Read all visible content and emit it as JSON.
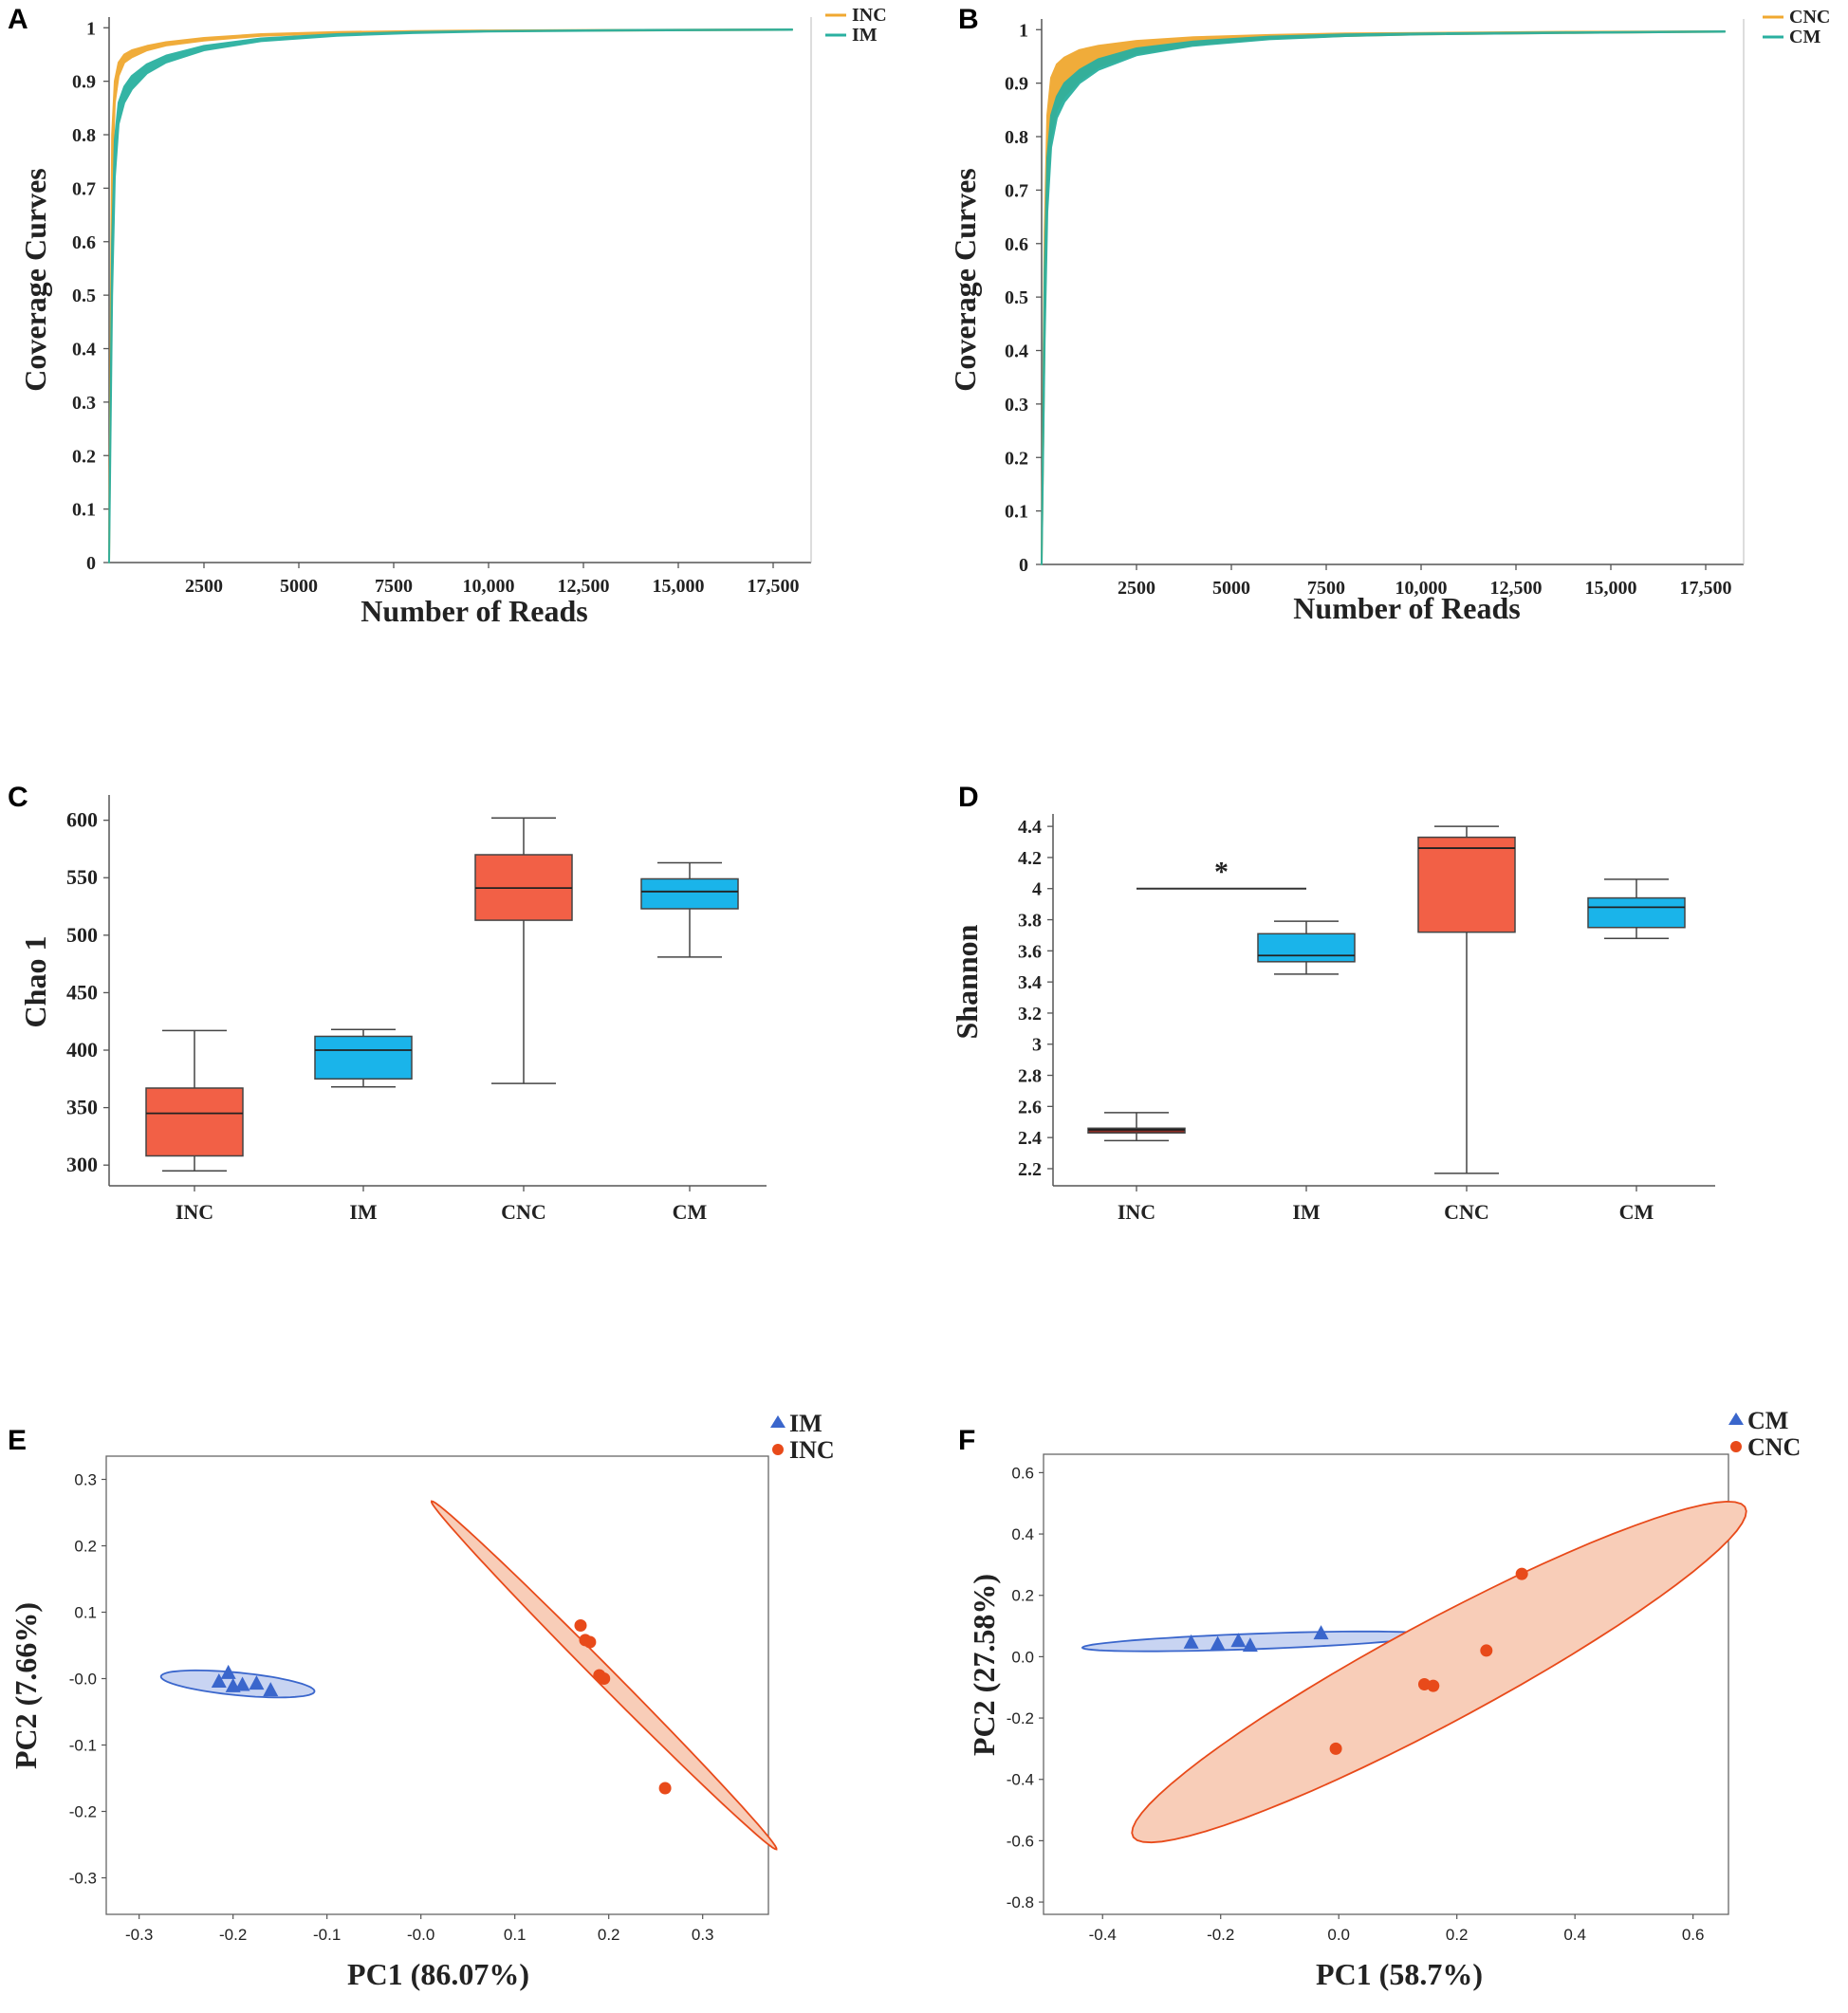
{
  "panel_labels": [
    "A",
    "B",
    "C",
    "D",
    "E",
    "F"
  ],
  "colors": {
    "orange_curve": "#f0a830",
    "teal_curve": "#2ab0a0",
    "box_red": "#f26046",
    "box_blue": "#1ab4ea",
    "box_dark_red": "#8a2a22",
    "pca_blue": "#3a66cc",
    "pca_blue_fill": "#c8d4f2",
    "pca_orange": "#e84a1a",
    "pca_orange_fill": "#f8cdb8"
  },
  "chart_data": [
    {
      "id": "A",
      "type": "line",
      "xlabel": "Number of Reads",
      "ylabel": "Coverage Curves",
      "xlim": [
        0,
        18500
      ],
      "ylim": [
        0,
        1.02
      ],
      "x_ticks": [
        2500,
        5000,
        7500,
        10000,
        12500,
        15000,
        17500
      ],
      "x_tick_labels": [
        "2500",
        "5000",
        "7500",
        "10,000",
        "12,500",
        "15,000",
        "17,500"
      ],
      "y_ticks": [
        0,
        0.1,
        0.2,
        0.3,
        0.4,
        0.5,
        0.6,
        0.7,
        0.8,
        0.9,
        1
      ],
      "y_tick_labels": [
        "0",
        "0.1",
        "0.2",
        "0.3",
        "0.4",
        "0.5",
        "0.6",
        "0.7",
        "0.8",
        "0.9",
        "1"
      ],
      "legend": [
        "INC",
        "IM"
      ],
      "series": [
        {
          "name": "INC",
          "color": "#f0a830",
          "x": [
            0,
            80,
            150,
            250,
            400,
            600,
            1000,
            1500,
            2500,
            4000,
            6000,
            8000,
            10000,
            14000,
            18000
          ],
          "y_low": [
            0,
            0.72,
            0.86,
            0.91,
            0.935,
            0.945,
            0.958,
            0.967,
            0.976,
            0.985,
            0.99,
            0.992,
            0.994,
            0.995,
            0.996
          ],
          "y_high": [
            0,
            0.8,
            0.9,
            0.935,
            0.95,
            0.958,
            0.966,
            0.973,
            0.981,
            0.988,
            0.992,
            0.994,
            0.995,
            0.996,
            0.997
          ]
        },
        {
          "name": "IM",
          "color": "#2ab0a0",
          "x": [
            0,
            80,
            150,
            250,
            400,
            600,
            1000,
            1500,
            2500,
            4000,
            6000,
            8000,
            10000,
            14000,
            18000
          ],
          "y_low": [
            0,
            0.5,
            0.72,
            0.82,
            0.86,
            0.885,
            0.915,
            0.935,
            0.958,
            0.975,
            0.985,
            0.99,
            0.993,
            0.995,
            0.996
          ],
          "y_high": [
            0,
            0.6,
            0.79,
            0.86,
            0.89,
            0.91,
            0.932,
            0.948,
            0.966,
            0.98,
            0.988,
            0.992,
            0.994,
            0.996,
            0.997
          ]
        }
      ]
    },
    {
      "id": "B",
      "type": "line",
      "xlabel": "Number of Reads",
      "ylabel": "Coverage Curves",
      "xlim": [
        0,
        18500
      ],
      "ylim": [
        0,
        1.02
      ],
      "x_ticks": [
        2500,
        5000,
        7500,
        10000,
        12500,
        15000,
        17500
      ],
      "x_tick_labels": [
        "2500",
        "5000",
        "7500",
        "10,000",
        "12,500",
        "15,000",
        "17,500"
      ],
      "y_ticks": [
        0,
        0.1,
        0.2,
        0.3,
        0.4,
        0.5,
        0.6,
        0.7,
        0.8,
        0.9,
        1
      ],
      "y_tick_labels": [
        "0",
        "0.1",
        "0.2",
        "0.3",
        "0.4",
        "0.5",
        "0.6",
        "0.7",
        "0.8",
        "0.9",
        "1"
      ],
      "legend": [
        "CNC",
        "CM"
      ],
      "series": [
        {
          "name": "CNC",
          "color": "#f0a830",
          "x": [
            0,
            80,
            150,
            250,
            400,
            600,
            1000,
            1500,
            2500,
            4000,
            6000,
            8000,
            10000,
            14000,
            18000
          ],
          "y_low": [
            0,
            0.45,
            0.7,
            0.8,
            0.85,
            0.875,
            0.905,
            0.93,
            0.955,
            0.972,
            0.983,
            0.988,
            0.991,
            0.994,
            0.996
          ],
          "y_high": [
            0,
            0.62,
            0.84,
            0.91,
            0.935,
            0.948,
            0.962,
            0.97,
            0.979,
            0.986,
            0.99,
            0.993,
            0.994,
            0.996,
            0.997
          ]
        },
        {
          "name": "CM",
          "color": "#2ab0a0",
          "x": [
            0,
            80,
            150,
            250,
            400,
            600,
            1000,
            1500,
            2500,
            4000,
            6000,
            8000,
            10000,
            14000,
            18000
          ],
          "y_low": [
            0,
            0.42,
            0.66,
            0.78,
            0.835,
            0.865,
            0.9,
            0.925,
            0.952,
            0.97,
            0.982,
            0.988,
            0.991,
            0.994,
            0.996
          ],
          "y_high": [
            0,
            0.55,
            0.76,
            0.84,
            0.875,
            0.9,
            0.925,
            0.945,
            0.965,
            0.978,
            0.987,
            0.991,
            0.993,
            0.995,
            0.997
          ]
        }
      ]
    },
    {
      "id": "C",
      "type": "box",
      "ylabel": "Chao 1",
      "categories": [
        "INC",
        "IM",
        "CNC",
        "CM"
      ],
      "ylim": [
        282,
        622
      ],
      "y_ticks": [
        300,
        350,
        400,
        450,
        500,
        550,
        600
      ],
      "y_tick_labels": [
        "300",
        "350",
        "400",
        "450",
        "500",
        "550",
        "600"
      ],
      "boxes": [
        {
          "name": "INC",
          "min": 295,
          "q1": 308,
          "median": 345,
          "q3": 367,
          "max": 417,
          "color": "#f26046"
        },
        {
          "name": "IM",
          "min": 368,
          "q1": 375,
          "median": 400,
          "q3": 412,
          "max": 418,
          "color": "#1ab4ea"
        },
        {
          "name": "CNC",
          "min": 371,
          "q1": 513,
          "median": 541,
          "q3": 570,
          "max": 602,
          "color": "#f26046"
        },
        {
          "name": "CM",
          "min": 481,
          "q1": 523,
          "median": 538,
          "q3": 549,
          "max": 563,
          "color": "#1ab4ea"
        }
      ]
    },
    {
      "id": "D",
      "type": "box",
      "ylabel": "Shannon",
      "categories": [
        "INC",
        "IM",
        "CNC",
        "CM"
      ],
      "ylim": [
        2.09,
        4.48
      ],
      "y_ticks": [
        2.2,
        2.4,
        2.6,
        2.8,
        3,
        3.2,
        3.4,
        3.6,
        3.8,
        4,
        4.2,
        4.4
      ],
      "y_tick_labels": [
        "2.2",
        "2.4",
        "2.6",
        "2.8",
        "3",
        "3.2",
        "3.4",
        "3.6",
        "3.8",
        "4",
        "4.2",
        "4.4"
      ],
      "significance": {
        "from": "INC",
        "to": "IM",
        "y": 4.0,
        "label": "*"
      },
      "boxes": [
        {
          "name": "INC",
          "min": 2.38,
          "q1": 2.43,
          "median": 2.45,
          "q3": 2.46,
          "max": 2.56,
          "color": "#8a2a22"
        },
        {
          "name": "IM",
          "min": 3.45,
          "q1": 3.53,
          "median": 3.57,
          "q3": 3.71,
          "max": 3.79,
          "color": "#1ab4ea"
        },
        {
          "name": "CNC",
          "min": 2.17,
          "q1": 3.72,
          "median": 4.26,
          "q3": 4.33,
          "max": 4.4,
          "color": "#f26046"
        },
        {
          "name": "CM",
          "min": 3.68,
          "q1": 3.75,
          "median": 3.88,
          "q3": 3.94,
          "max": 4.06,
          "color": "#1ab4ea"
        }
      ]
    },
    {
      "id": "E",
      "type": "scatter",
      "xlabel": "PC1 (86.07%)",
      "ylabel": "PC2 (7.66%)",
      "xlim": [
        -0.335,
        0.37
      ],
      "ylim": [
        -0.355,
        0.335
      ],
      "x_ticks": [
        -0.3,
        -0.2,
        -0.1,
        0,
        0.1,
        0.2,
        0.3
      ],
      "x_tick_labels": [
        "-0.3",
        "-0.2",
        "-0.1",
        "-0.0",
        "0.1",
        "0.2",
        "0.3"
      ],
      "y_ticks": [
        0.3,
        0.2,
        0.1,
        0,
        -0.1,
        -0.2,
        -0.3
      ],
      "y_tick_labels": [
        "0.3",
        "0.2",
        "0.1",
        "-0.0",
        "-0.1",
        "-0.2",
        "-0.3"
      ],
      "legend": [
        "IM",
        "INC"
      ],
      "series": [
        {
          "name": "IM",
          "marker": "triangle",
          "color": "#3a66cc",
          "fill": "#c8d4f2",
          "x": [
            -0.215,
            -0.205,
            -0.2,
            -0.19,
            -0.175,
            -0.16
          ],
          "y": [
            -0.005,
            0.008,
            -0.012,
            -0.01,
            -0.008,
            -0.018
          ],
          "ellipse": {
            "cx": -0.195,
            "cy": -0.008,
            "major": 0.165,
            "minor": 0.034,
            "angle": -8
          }
        },
        {
          "name": "INC",
          "marker": "circle",
          "color": "#e84a1a",
          "fill": "#f8cdb8",
          "x": [
            0.17,
            0.175,
            0.18,
            0.19,
            0.195,
            0.26
          ],
          "y": [
            0.08,
            0.058,
            0.055,
            0.005,
            0.0,
            -0.165
          ],
          "ellipse": {
            "cx": 0.195,
            "cy": 0.005,
            "major": 0.64,
            "minor": 0.022,
            "angle": -55
          }
        }
      ]
    },
    {
      "id": "F",
      "type": "scatter",
      "xlabel": "PC1 (58.7%)",
      "ylabel": "PC2 (27.58%)",
      "xlim": [
        -0.5,
        0.66
      ],
      "ylim": [
        -0.84,
        0.66
      ],
      "x_ticks": [
        -0.4,
        -0.2,
        0,
        0.2,
        0.4,
        0.6
      ],
      "x_tick_labels": [
        "-0.4",
        "-0.2",
        "0.0",
        "0.2",
        "0.4",
        "0.6"
      ],
      "y_ticks": [
        0.6,
        0.4,
        0.2,
        0,
        -0.2,
        -0.4,
        -0.6,
        -0.8
      ],
      "y_tick_labels": [
        "0.6",
        "0.4",
        "0.2",
        "0.0",
        "-0.2",
        "-0.4",
        "-0.6",
        "-0.8"
      ],
      "legend": [
        "CM",
        "CNC"
      ],
      "series": [
        {
          "name": "CM",
          "marker": "triangle",
          "color": "#3a66cc",
          "fill": "#c8d4f2",
          "x": [
            -0.25,
            -0.205,
            -0.17,
            -0.15,
            -0.03
          ],
          "y": [
            0.045,
            0.04,
            0.05,
            0.035,
            0.075
          ],
          "ellipse": {
            "cx": -0.14,
            "cy": 0.05,
            "major": 0.59,
            "minor": 0.05,
            "angle": 4
          }
        },
        {
          "name": "CNC",
          "marker": "circle",
          "color": "#e84a1a",
          "fill": "#f8cdb8",
          "x": [
            -0.005,
            0.145,
            0.16,
            0.25,
            0.31
          ],
          "y": [
            -0.3,
            -0.09,
            -0.095,
            0.02,
            0.27
          ],
          "ellipse": {
            "cx": 0.17,
            "cy": -0.05,
            "major": 1.5,
            "minor": 0.26,
            "angle": 47
          }
        }
      ]
    }
  ]
}
